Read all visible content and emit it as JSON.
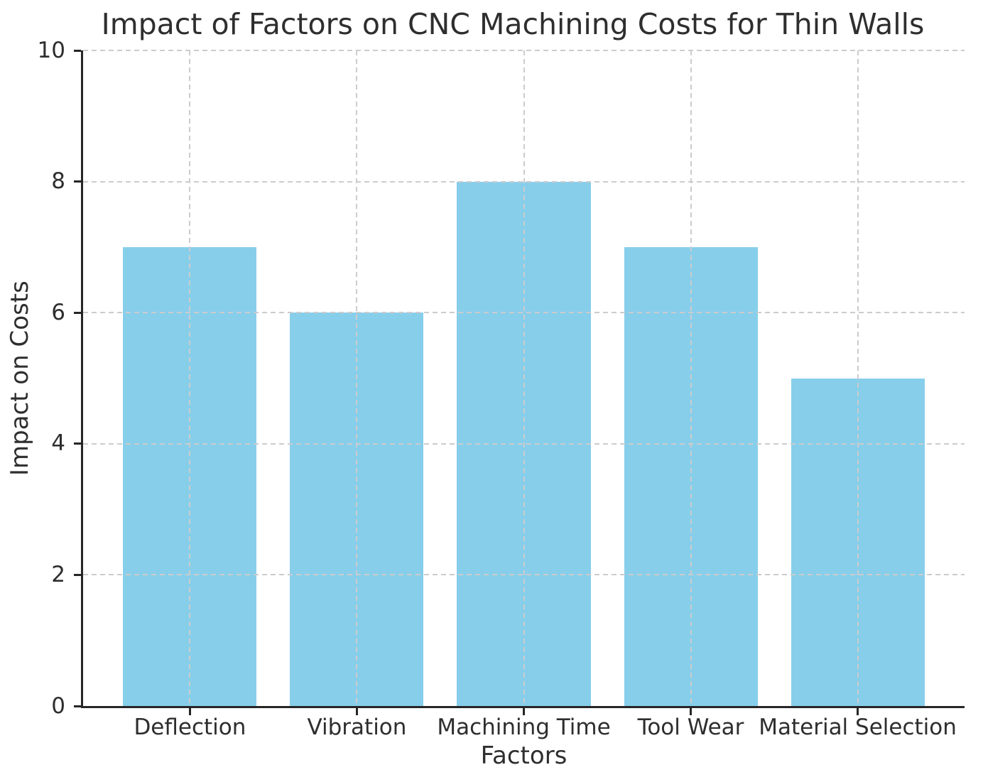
{
  "chart_data": {
    "type": "bar",
    "title": "Impact of Factors on CNC Machining Costs for Thin Walls",
    "xlabel": "Factors",
    "ylabel": "Impact on Costs",
    "categories": [
      "Deflection",
      "Vibration",
      "Machining Time",
      "Tool Wear",
      "Material Selection"
    ],
    "values": [
      7,
      6,
      8,
      7,
      5
    ],
    "ylim": [
      0,
      10
    ],
    "yticks": [
      0,
      2,
      4,
      6,
      8,
      10
    ],
    "bar_width_fraction": 0.8,
    "legend": "none",
    "grid": "dashed horizontal and vertical gridlines drawn above bars",
    "colors": {
      "bar": "#87ceeb",
      "gridline": "#cccccc",
      "spine": "#262626",
      "text": "#2e2e2e",
      "background": "#ffffff"
    }
  }
}
